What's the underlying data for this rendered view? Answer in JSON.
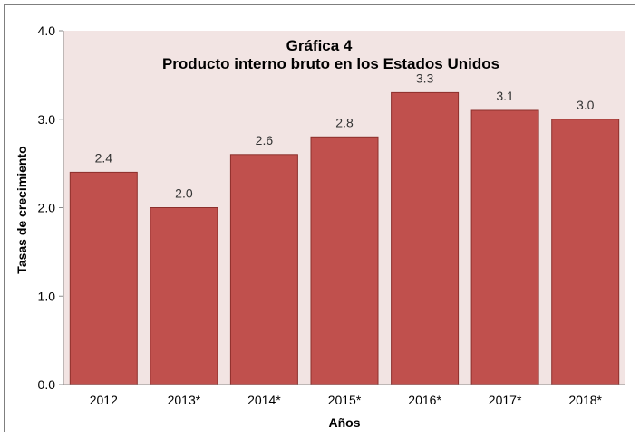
{
  "chart_data": {
    "type": "bar",
    "title": "Gráfica 4",
    "subtitle": "Producto interno bruto en los Estados Unidos",
    "xlabel": "Años",
    "ylabel": "Tasas de crecimiento",
    "categories": [
      "2012",
      "2013*",
      "2014*",
      "2015*",
      "2016*",
      "2017*",
      "2018*"
    ],
    "values": [
      2.4,
      2.0,
      2.6,
      2.8,
      3.3,
      3.1,
      3.0
    ],
    "data_labels": [
      "2.4",
      "2.0",
      "2.6",
      "2.8",
      "3.3",
      "3.1",
      "3.0"
    ],
    "yticks": [
      "0.0",
      "1.0",
      "2.0",
      "3.0",
      "4.0"
    ],
    "ytick_values": [
      0,
      1,
      2,
      3,
      4
    ],
    "ylim": [
      0,
      4
    ],
    "grid": false,
    "legend": "none",
    "colors": {
      "bar_fill": "#c0504d",
      "bar_stroke": "#8c2f2c",
      "plot_background": "#f2e4e3",
      "axis": "#8a8a8a"
    }
  }
}
